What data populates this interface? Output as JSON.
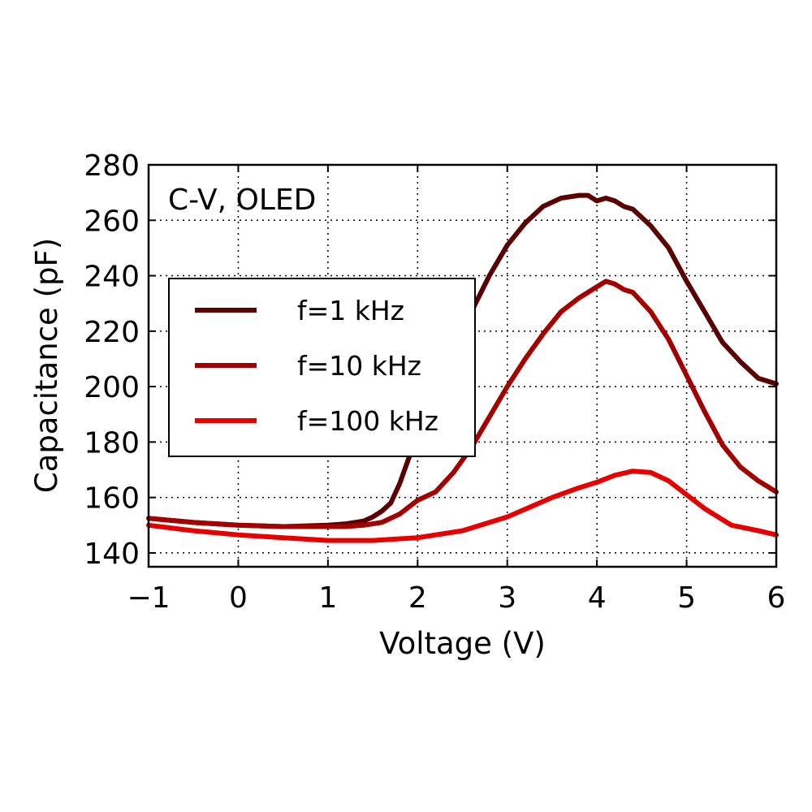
{
  "chart_data": {
    "type": "line",
    "annotation": "C-V, OLED",
    "xlabel": "Voltage (V)",
    "ylabel": "Capacitance (pF)",
    "xlim": [
      -1,
      6
    ],
    "ylim": [
      135,
      280
    ],
    "xticks": [
      -1,
      0,
      1,
      2,
      3,
      4,
      5,
      6
    ],
    "xtick_labels": [
      "−1",
      "0",
      "1",
      "2",
      "3",
      "4",
      "5",
      "6"
    ],
    "yticks": [
      140,
      160,
      180,
      200,
      220,
      240,
      260,
      280
    ],
    "ytick_labels": [
      "140",
      "160",
      "180",
      "200",
      "220",
      "240",
      "260",
      "280"
    ],
    "grid": true,
    "legend_position": "center-left",
    "series": [
      {
        "name": "f=1 kHz",
        "color": "#5a0000",
        "x": [
          -1,
          -0.5,
          0,
          0.5,
          1,
          1.2,
          1.4,
          1.5,
          1.6,
          1.7,
          1.8,
          1.9,
          2,
          2.2,
          2.4,
          2.6,
          2.8,
          3,
          3.2,
          3.4,
          3.6,
          3.8,
          3.9,
          4,
          4.1,
          4.2,
          4.3,
          4.4,
          4.6,
          4.8,
          5,
          5.2,
          5.4,
          5.6,
          5.8,
          6
        ],
        "y": [
          152.5,
          151,
          150,
          149.5,
          150,
          150.5,
          151.5,
          153,
          155,
          158,
          165,
          174,
          182,
          198,
          213,
          227,
          240,
          251,
          259,
          265,
          268,
          269,
          269,
          267,
          268,
          267,
          265,
          264,
          258,
          250,
          238,
          227,
          216,
          209,
          203,
          201
        ]
      },
      {
        "name": "f=10 kHz",
        "color": "#a30000",
        "x": [
          -1,
          -0.5,
          0,
          0.5,
          1,
          1.2,
          1.4,
          1.6,
          1.8,
          2,
          2.2,
          2.4,
          2.6,
          2.8,
          3,
          3.2,
          3.4,
          3.6,
          3.8,
          4,
          4.1,
          4.2,
          4.3,
          4.4,
          4.6,
          4.8,
          5,
          5.2,
          5.4,
          5.6,
          5.8,
          6
        ],
        "y": [
          152.5,
          151,
          150,
          149.5,
          149.5,
          149.5,
          150,
          151,
          154,
          159,
          162,
          169,
          178,
          189,
          200,
          210,
          219,
          227,
          232,
          236,
          238,
          237,
          235,
          234,
          227,
          217,
          204,
          191,
          179,
          171,
          166,
          162
        ]
      },
      {
        "name": "f=100 kHz",
        "color": "#e60000",
        "x": [
          -1,
          -0.5,
          0,
          0.5,
          1,
          1.5,
          2,
          2.5,
          3,
          3.5,
          3.8,
          4,
          4.2,
          4.4,
          4.6,
          4.8,
          5,
          5.2,
          5.5,
          5.8,
          6
        ],
        "y": [
          150,
          148,
          146.5,
          145.5,
          144.5,
          144.5,
          145.5,
          148,
          153,
          160,
          163.5,
          165.5,
          168,
          169.5,
          169,
          166,
          161,
          156,
          150,
          148,
          146.5
        ]
      }
    ]
  }
}
